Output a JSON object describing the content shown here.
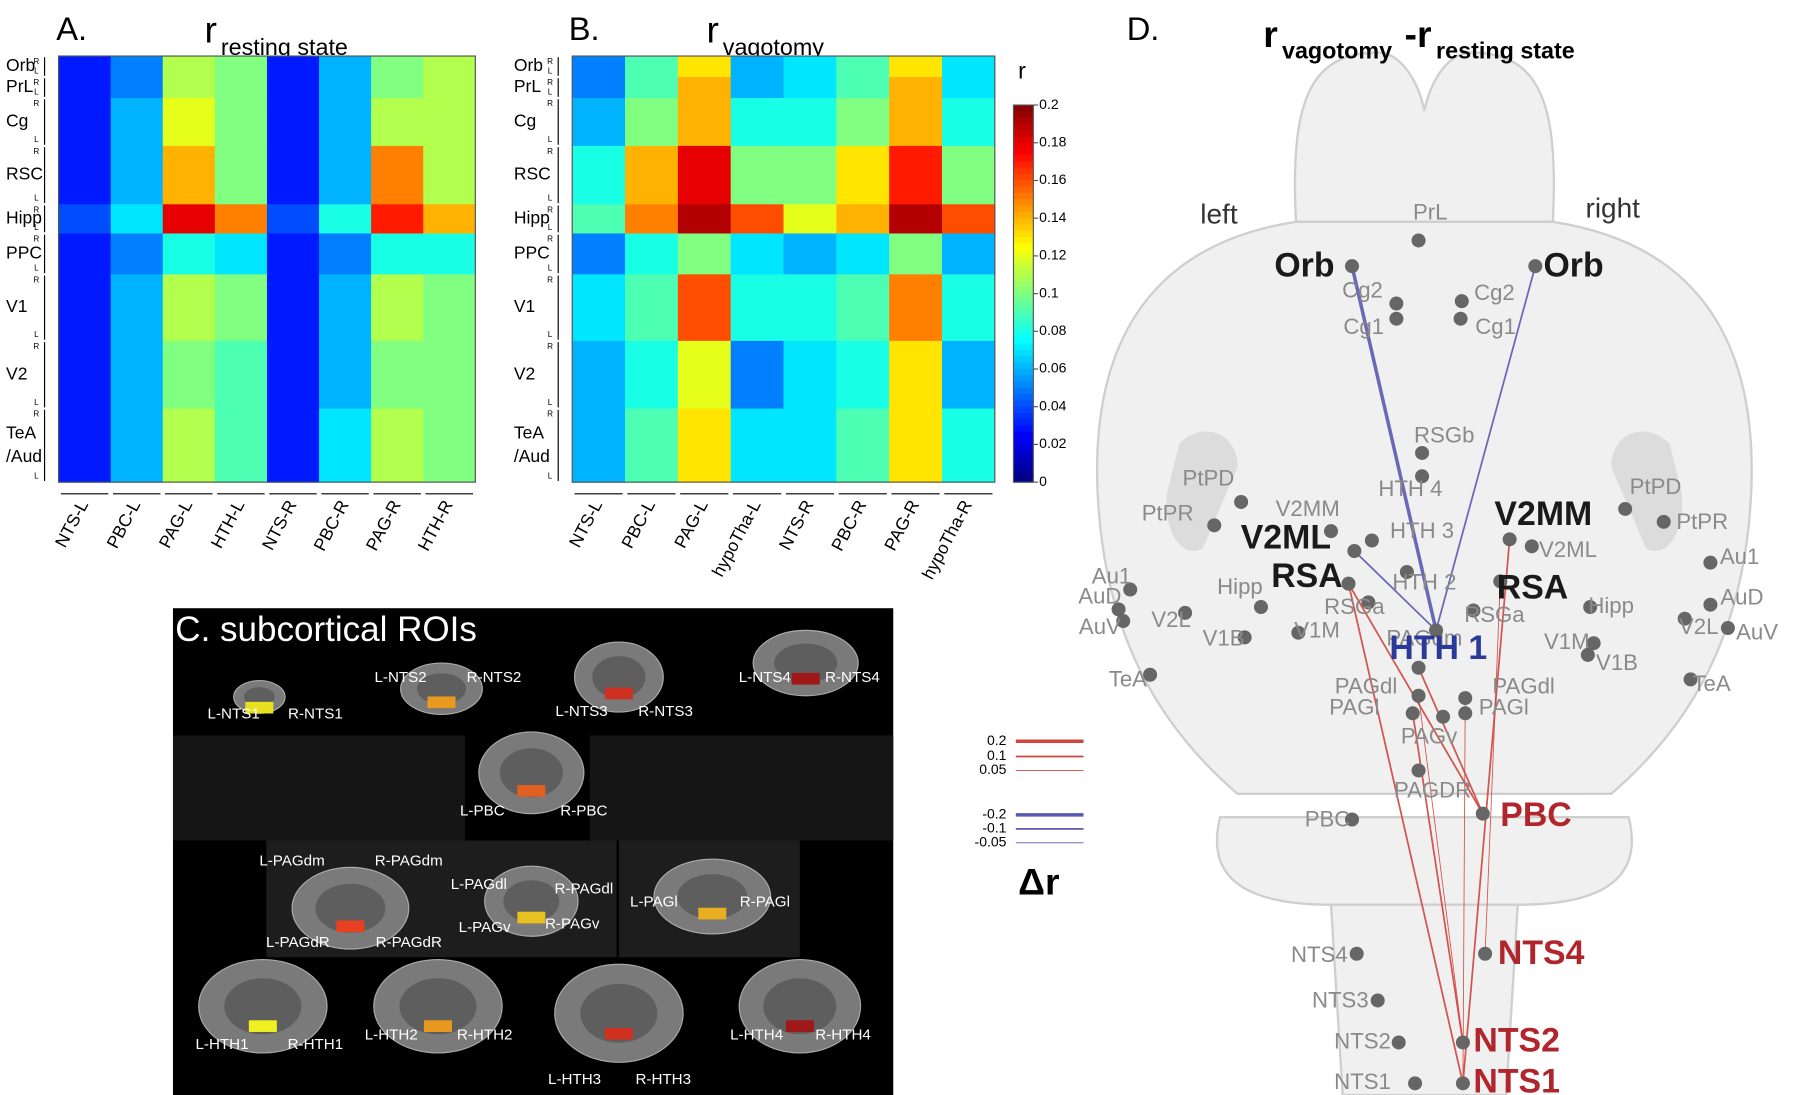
{
  "chart_data": [
    {
      "type": "heatmap",
      "panel": "A.",
      "title": "r",
      "title_sub": "resting state",
      "rows": [
        "Orb",
        "PrL",
        "Cg",
        "RSC",
        "Hipp",
        "PPC",
        "V1",
        "V2",
        "TeA/Aud"
      ],
      "hemis": [
        "R",
        "L"
      ],
      "columns": [
        "NTS-L",
        "PBC-L",
        "PAG-L",
        "HTH-L",
        "NTS-R",
        "PBC-R",
        "PAG-R",
        "HTH-R"
      ],
      "values": [
        [
          0.03,
          0.05,
          0.11,
          0.1,
          0.03,
          0.06,
          0.1,
          0.11
        ],
        [
          0.03,
          0.05,
          0.11,
          0.1,
          0.03,
          0.06,
          0.1,
          0.11
        ],
        [
          0.03,
          0.06,
          0.12,
          0.1,
          0.03,
          0.06,
          0.11,
          0.11
        ],
        [
          0.03,
          0.06,
          0.14,
          0.1,
          0.03,
          0.06,
          0.15,
          0.11
        ],
        [
          0.04,
          0.07,
          0.18,
          0.15,
          0.04,
          0.08,
          0.17,
          0.14
        ],
        [
          0.03,
          0.05,
          0.08,
          0.07,
          0.03,
          0.05,
          0.08,
          0.08
        ],
        [
          0.03,
          0.06,
          0.11,
          0.1,
          0.03,
          0.06,
          0.11,
          0.1
        ],
        [
          0.03,
          0.06,
          0.1,
          0.09,
          0.03,
          0.06,
          0.1,
          0.1
        ],
        [
          0.03,
          0.06,
          0.11,
          0.09,
          0.03,
          0.07,
          0.11,
          0.1
        ]
      ]
    },
    {
      "type": "heatmap",
      "panel": "B.",
      "title": "r",
      "title_sub": "vagotomy",
      "rows": [
        "Orb",
        "PrL",
        "Cg",
        "RSC",
        "Hipp",
        "PPC",
        "V1",
        "V2",
        "TeA/Aud"
      ],
      "hemis": [
        "R",
        "L"
      ],
      "columns": [
        "NTS-L",
        "PBC-L",
        "PAG-L",
        "hypoTha-L",
        "NTS-R",
        "PBC-R",
        "PAG-R",
        "hypoTha-R"
      ],
      "values": [
        [
          0.05,
          0.09,
          0.13,
          0.06,
          0.07,
          0.09,
          0.13,
          0.07
        ],
        [
          0.05,
          0.09,
          0.14,
          0.06,
          0.07,
          0.09,
          0.14,
          0.07
        ],
        [
          0.06,
          0.1,
          0.14,
          0.08,
          0.08,
          0.1,
          0.14,
          0.08
        ],
        [
          0.08,
          0.14,
          0.18,
          0.1,
          0.1,
          0.13,
          0.17,
          0.1
        ],
        [
          0.09,
          0.15,
          0.19,
          0.16,
          0.12,
          0.14,
          0.19,
          0.16
        ],
        [
          0.05,
          0.08,
          0.1,
          0.07,
          0.06,
          0.07,
          0.1,
          0.06
        ],
        [
          0.07,
          0.09,
          0.16,
          0.08,
          0.08,
          0.09,
          0.15,
          0.08
        ],
        [
          0.06,
          0.08,
          0.12,
          0.05,
          0.07,
          0.08,
          0.13,
          0.06
        ],
        [
          0.06,
          0.09,
          0.13,
          0.07,
          0.07,
          0.09,
          0.13,
          0.08
        ]
      ],
      "colorbar": {
        "label": "r",
        "lim": [
          0,
          0.2
        ],
        "ticks": [
          0,
          0.02,
          0.04,
          0.06,
          0.08,
          0.1,
          0.12,
          0.14,
          0.16,
          0.18,
          0.2
        ]
      }
    }
  ],
  "panel_c": {
    "title": "C. subcortical ROIs",
    "slices": [
      [
        "L-NTS1",
        "R-NTS1"
      ],
      [
        "L-NTS2",
        "R-NTS2"
      ],
      [
        "L-NTS3",
        "R-NTS3"
      ],
      [
        "L-NTS4",
        "R-NTS4"
      ],
      [
        "L-PBC",
        "R-PBC"
      ],
      [
        "L-PAGdm",
        "R-PAGdm",
        "L-PAGdR",
        "R-PAGdR"
      ],
      [
        "L-PAGdl",
        "R-PAGdl",
        "L-PAGv",
        "R-PAGv"
      ],
      [
        "L-PAGl",
        "R-PAGl"
      ],
      [
        "L-HTH1",
        "R-HTH1"
      ],
      [
        "L-HTH2",
        "R-HTH2"
      ],
      [
        "L-HTH3",
        "R-HTH3"
      ],
      [
        "L-HTH4",
        "R-HTH4"
      ]
    ]
  },
  "panel_d": {
    "panel": "D.",
    "title": "r",
    "title_sub": "vagotomy",
    "title2": "-r",
    "title2_sub": "resting state",
    "sides": [
      "left",
      "right"
    ],
    "colors": {
      "gray": "#8a8a8a",
      "black": "#1a1a1a",
      "red": "#b0262c",
      "blue": "#2b3a9a"
    },
    "nodes": [
      {
        "label": "PrL",
        "color": "gray"
      },
      {
        "label": "Cg2",
        "color": "gray"
      },
      {
        "label": "Cg1",
        "color": "gray"
      },
      {
        "label": "Cg2",
        "color": "gray"
      },
      {
        "label": "Cg1",
        "color": "gray"
      },
      {
        "label": "RSGb",
        "color": "gray"
      },
      {
        "label": "HTH 4",
        "color": "gray"
      },
      {
        "label": "HTH 3",
        "color": "gray"
      },
      {
        "label": "HTH 2",
        "color": "gray"
      },
      {
        "label": "V2MM",
        "color": "gray"
      },
      {
        "label": "V2ML",
        "color": "gray"
      },
      {
        "label": "PtPD",
        "color": "gray"
      },
      {
        "label": "PtPR",
        "color": "gray"
      },
      {
        "label": "PtPD",
        "color": "gray"
      },
      {
        "label": "PtPR",
        "color": "gray"
      },
      {
        "label": "Au1",
        "color": "gray"
      },
      {
        "label": "AuD",
        "color": "gray"
      },
      {
        "label": "AuV",
        "color": "gray"
      },
      {
        "label": "V2L",
        "color": "gray"
      },
      {
        "label": "TeA",
        "color": "gray"
      },
      {
        "label": "Au1",
        "color": "gray"
      },
      {
        "label": "AuD",
        "color": "gray"
      },
      {
        "label": "AuV",
        "color": "gray"
      },
      {
        "label": "V2L",
        "color": "gray"
      },
      {
        "label": "TeA",
        "color": "gray"
      },
      {
        "label": "Hipp",
        "color": "gray"
      },
      {
        "label": "Hipp",
        "color": "gray"
      },
      {
        "label": "V1B",
        "color": "gray"
      },
      {
        "label": "V1M",
        "color": "gray"
      },
      {
        "label": "V1M",
        "color": "gray"
      },
      {
        "label": "V1B",
        "color": "gray"
      },
      {
        "label": "RSGa",
        "color": "gray"
      },
      {
        "label": "RSGa",
        "color": "gray"
      },
      {
        "label": "PAGdm",
        "color": "gray"
      },
      {
        "label": "PAGdl",
        "color": "gray"
      },
      {
        "label": "PAGdl",
        "color": "gray"
      },
      {
        "label": "PAGl",
        "color": "gray"
      },
      {
        "label": "PAGl",
        "color": "gray"
      },
      {
        "label": "PAGv",
        "color": "gray"
      },
      {
        "label": "PAGDR",
        "color": "gray"
      },
      {
        "label": "PBC",
        "color": "gray"
      },
      {
        "label": "NTS4",
        "color": "gray"
      },
      {
        "label": "NTS3",
        "color": "gray"
      },
      {
        "label": "NTS2",
        "color": "gray"
      },
      {
        "label": "NTS1",
        "color": "gray"
      },
      {
        "label": "Orb",
        "color": "black"
      },
      {
        "label": "Orb",
        "color": "black"
      },
      {
        "label": "V2ML",
        "color": "black"
      },
      {
        "label": "V2MM",
        "color": "black"
      },
      {
        "label": "RSA",
        "color": "black"
      },
      {
        "label": "RSA",
        "color": "black"
      },
      {
        "label": "HTH 1",
        "color": "blue"
      },
      {
        "label": "PBC",
        "color": "red"
      },
      {
        "label": "NTS4",
        "color": "red"
      },
      {
        "label": "NTS2",
        "color": "red"
      },
      {
        "label": "NTS1",
        "color": "red"
      }
    ],
    "connections": [
      {
        "from": 45,
        "to": 51,
        "value": -0.2
      },
      {
        "from": 46,
        "to": 51,
        "value": -0.1
      },
      {
        "from": 47,
        "to": 51,
        "value": -0.1
      },
      {
        "from": 52,
        "to": 33,
        "value": 0.1
      },
      {
        "from": 52,
        "to": 49,
        "value": 0.1
      },
      {
        "from": 55,
        "to": 49,
        "value": 0.1
      },
      {
        "from": 55,
        "to": 48,
        "value": 0.1
      },
      {
        "from": 54,
        "to": 36,
        "value": 0.1
      },
      {
        "from": 53,
        "to": 50,
        "value": 0.05
      },
      {
        "from": 54,
        "to": 34,
        "value": 0.05
      },
      {
        "from": 55,
        "to": 35,
        "value": 0.05
      }
    ],
    "legend": {
      "label": "Δr",
      "positive_color": "#d0453f",
      "negative_color": "#5a5ab0",
      "values": [
        0.2,
        0.1,
        0.05,
        -0.2,
        -0.1,
        -0.05
      ]
    }
  }
}
